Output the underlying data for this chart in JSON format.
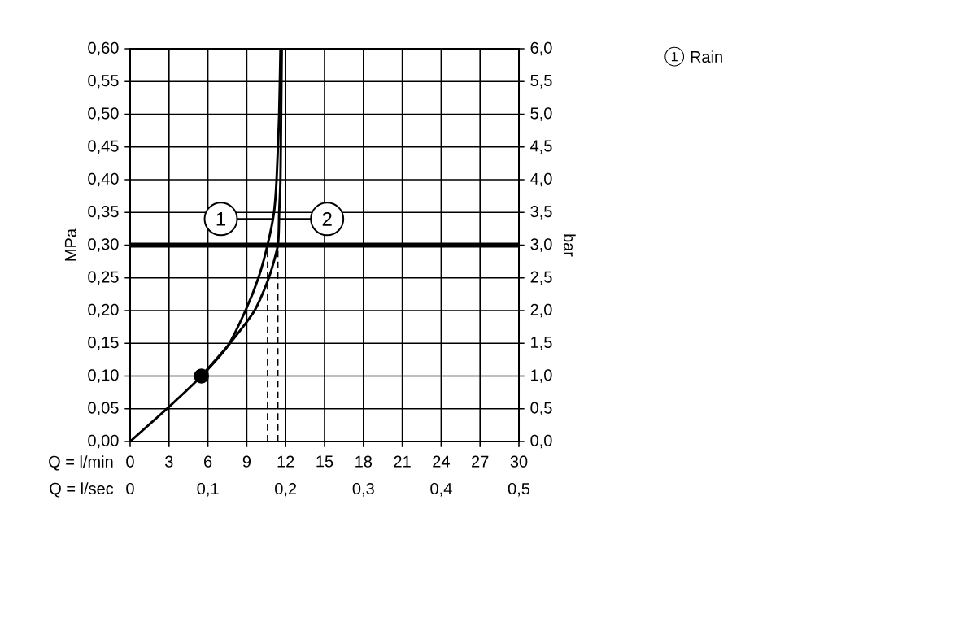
{
  "chart_data": {
    "type": "line",
    "xlabel": "Q = l/min",
    "ylabel": "MPa",
    "y2label": "bar",
    "x2label": "Q = l/sec",
    "xlim": [
      0,
      30
    ],
    "xticks": [
      0,
      3,
      6,
      9,
      12,
      15,
      18,
      21,
      24,
      27,
      30
    ],
    "ylim": [
      0,
      0.6
    ],
    "yticks": [
      {
        "value": 0,
        "label": "0,00"
      },
      {
        "value": 0.05,
        "label": "0,05"
      },
      {
        "value": 0.1,
        "label": "0,10"
      },
      {
        "value": 0.15,
        "label": "0,15"
      },
      {
        "value": 0.2,
        "label": "0,20"
      },
      {
        "value": 0.25,
        "label": "0,25"
      },
      {
        "value": 0.3,
        "label": "0,30"
      },
      {
        "value": 0.35,
        "label": "0,35"
      },
      {
        "value": 0.4,
        "label": "0,40"
      },
      {
        "value": 0.45,
        "label": "0,45"
      },
      {
        "value": 0.5,
        "label": "0,50"
      },
      {
        "value": 0.55,
        "label": "0,55"
      },
      {
        "value": 0.6,
        "label": "0,60"
      }
    ],
    "y2lim": [
      0,
      6
    ],
    "y2ticks": [
      {
        "value": 0,
        "label": "0,0"
      },
      {
        "value": 0.5,
        "label": "0,5"
      },
      {
        "value": 1,
        "label": "1,0"
      },
      {
        "value": 1.5,
        "label": "1,5"
      },
      {
        "value": 2,
        "label": "2,0"
      },
      {
        "value": 2.5,
        "label": "2,5"
      },
      {
        "value": 3,
        "label": "3,0"
      },
      {
        "value": 3.5,
        "label": "3,5"
      },
      {
        "value": 4,
        "label": "4,0"
      },
      {
        "value": 4.5,
        "label": "4,5"
      },
      {
        "value": 5,
        "label": "5,0"
      },
      {
        "value": 5.5,
        "label": "5,5"
      },
      {
        "value": 6,
        "label": "6,0"
      }
    ],
    "x2lim": [
      0,
      0.5
    ],
    "x2ticks": [
      0,
      {
        "value": 0.1,
        "label": "0,1"
      },
      {
        "value": 0.2,
        "label": "0,2"
      },
      {
        "value": 0.3,
        "label": "0,3"
      },
      {
        "value": 0.4,
        "label": "0,4"
      },
      {
        "value": 0.5,
        "label": "0,5"
      }
    ],
    "grid": true,
    "legend": "top right",
    "series": [
      {
        "name": "Rain",
        "color": "#000000",
        "x": [
          0,
          3,
          5.5,
          7.5,
          8.9,
          9.9,
          10.6,
          11.1,
          11.3,
          11.5,
          11.6
        ],
        "values": [
          0,
          0.053,
          0.1,
          0.145,
          0.2,
          0.25,
          0.3,
          0.35,
          0.4,
          0.5,
          0.6
        ]
      },
      {
        "color": "#000000",
        "x": [
          5.5,
          7.7,
          9.6,
          10.7,
          11.4,
          11.5,
          11.6,
          11.65,
          11.7
        ],
        "values": [
          0.1,
          0.15,
          0.2,
          0.25,
          0.3,
          0.35,
          0.4,
          0.5,
          0.6
        ]
      },
      {
        "type": "scatter",
        "marker": "circle",
        "color": "#000000",
        "x": [
          5.5
        ],
        "values": [
          0.1
        ]
      }
    ],
    "ref_lines": [
      {
        "axis": "y",
        "value": 0.3,
        "line_style": "solid"
      },
      {
        "axis": "x",
        "value": 10.6,
        "line_style": "dashed"
      },
      {
        "axis": "x",
        "value": 11.4,
        "line_style": "dashed"
      }
    ],
    "annotations": [
      {
        "text": "1",
        "x": 7,
        "y": 0.34
      },
      {
        "text": "2",
        "x": 15.2,
        "y": 0.34
      }
    ]
  }
}
